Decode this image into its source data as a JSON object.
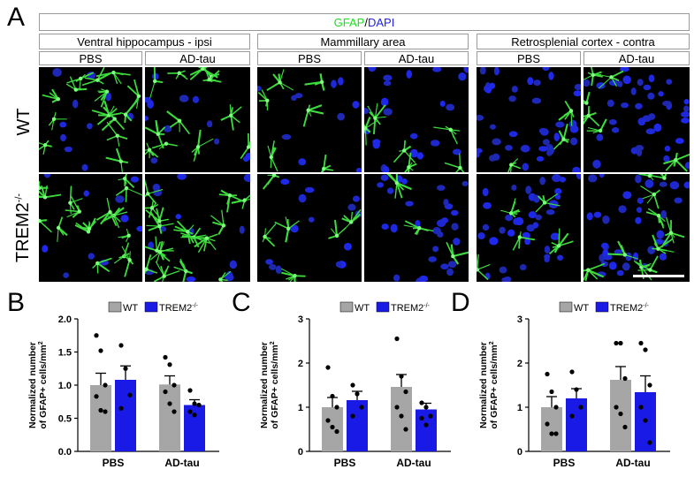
{
  "panel_letters": {
    "a": "A",
    "b": "B",
    "c": "C",
    "d": "D"
  },
  "stain": {
    "marker": "GFAP",
    "separator": "/",
    "counter": "DAPI",
    "marker_color": "#22dd22",
    "counter_color": "#2222dd"
  },
  "regions": [
    "Ventral hippocampus - ipsi",
    "Mammillary area",
    "Retrosplenial cortex - contra"
  ],
  "conditions": [
    "PBS",
    "AD-tau"
  ],
  "genotypes": {
    "wt": "WT",
    "trem2_base": "TREM2",
    "trem2_sup": "-/-"
  },
  "legend": {
    "wt": "WT",
    "trem2_base": "TREM2",
    "trem2_sup": "-/-",
    "wt_color": "#a6a6a6",
    "trem2_color": "#1a1ae6"
  },
  "ylabel_line1": "Normalized number",
  "ylabel_line2": "of GFAP+ cells/mm",
  "ylabel_sup": "2",
  "chart_data": [
    {
      "type": "bar",
      "categories": [
        "PBS",
        "AD-tau"
      ],
      "series": [
        {
          "name": "WT",
          "values": [
            1.0,
            1.01
          ],
          "sem": [
            0.18,
            0.13
          ],
          "points": [
            [
              1.75,
              1.52,
              1.0,
              0.83,
              0.62,
              0.6
            ],
            [
              1.42,
              1.31,
              1.0,
              0.9,
              0.72,
              0.6
            ]
          ]
        },
        {
          "name": "TREM2-/-",
          "values": [
            1.08,
            0.7
          ],
          "sem": [
            0.21,
            0.08
          ],
          "points": [
            [
              1.6,
              1.25,
              0.85,
              0.65
            ],
            [
              0.92,
              0.72,
              0.7,
              0.6,
              0.55
            ]
          ]
        }
      ],
      "ylim": [
        0,
        2.0
      ],
      "yticks": [
        "0.0",
        "0.5",
        "1.0",
        "1.5",
        "2.0"
      ]
    },
    {
      "type": "bar",
      "categories": [
        "PBS",
        "AD-tau"
      ],
      "series": [
        {
          "name": "WT",
          "values": [
            1.0,
            1.46
          ],
          "sem": [
            0.22,
            0.28
          ],
          "points": [
            [
              1.9,
              1.25,
              1.0,
              0.7,
              0.55,
              0.45
            ],
            [
              2.55,
              1.7,
              1.35,
              1.0,
              0.8,
              0.5
            ]
          ]
        },
        {
          "name": "TREM2-/-",
          "values": [
            1.16,
            0.95
          ],
          "sem": [
            0.2,
            0.14
          ],
          "points": [
            [
              1.5,
              1.3,
              1.0,
              0.8
            ],
            [
              1.1,
              1.0,
              0.8,
              0.75,
              0.6
            ]
          ]
        }
      ],
      "ylim": [
        0,
        3
      ],
      "yticks": [
        "0",
        "1",
        "2",
        "3"
      ]
    },
    {
      "type": "bar",
      "categories": [
        "PBS",
        "AD-tau"
      ],
      "series": [
        {
          "name": "WT",
          "values": [
            1.0,
            1.62
          ],
          "sem": [
            0.24,
            0.3
          ],
          "points": [
            [
              1.75,
              1.35,
              1.0,
              0.62,
              0.4,
              0.4
            ],
            [
              2.45,
              2.45,
              1.65,
              1.0,
              0.85,
              0.55
            ]
          ]
        },
        {
          "name": "TREM2-/-",
          "values": [
            1.2,
            1.34
          ],
          "sem": [
            0.22,
            0.37
          ],
          "points": [
            [
              1.8,
              1.4,
              1.0,
              0.8
            ],
            [
              2.45,
              2.3,
              1.5,
              1.0,
              0.7,
              0.2
            ]
          ]
        }
      ],
      "ylim": [
        0,
        3
      ],
      "yticks": [
        "0",
        "1",
        "2",
        "3"
      ]
    }
  ]
}
